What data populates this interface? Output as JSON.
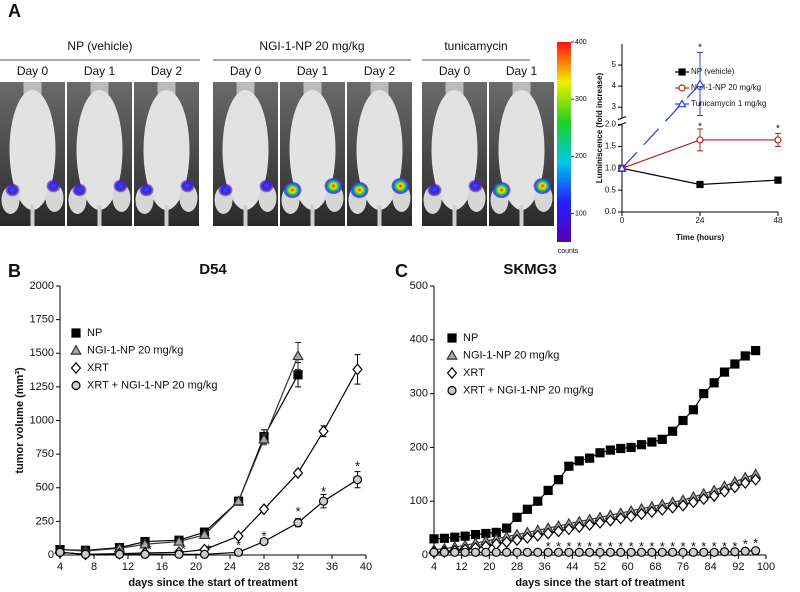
{
  "panel_labels": [
    "A",
    "B",
    "C"
  ],
  "imaging": {
    "groups": [
      {
        "title": "NP (vehicle)",
        "days": [
          "Day 0",
          "Day 1",
          "Day 2"
        ]
      },
      {
        "title": "NGI-1-NP 20 mg/kg",
        "days": [
          "Day 0",
          "Day 1",
          "Day 2"
        ]
      },
      {
        "title": "tunicamycin",
        "days": [
          "Day 0",
          "Day 1"
        ]
      }
    ],
    "colorbar": {
      "lim": [
        50,
        400
      ],
      "ticks": [
        100,
        200,
        300,
        400
      ],
      "label": "counts"
    }
  },
  "chart_data": [
    {
      "type": "line",
      "xlabel": "Time (hours)",
      "ylabel": "Luminiscence (fold increase)",
      "x": [
        0,
        24,
        48
      ],
      "xlim": [
        0,
        48
      ],
      "xticks": [
        0,
        24,
        48
      ],
      "ylim": [
        0,
        6
      ],
      "y_break": [
        2,
        2.5
      ],
      "yticks": [
        {
          "value": 0,
          "label": "0.0"
        },
        {
          "value": 0.5,
          "label": "0.5"
        },
        {
          "value": 1,
          "label": "1.0"
        },
        {
          "value": 1.5,
          "label": "1.5"
        },
        {
          "value": 2,
          "label": "2.0"
        },
        3,
        4,
        5
      ],
      "legend": "upper right",
      "series": [
        {
          "name": "NP (vehicle)",
          "color": "#000000",
          "fill": "#000000",
          "marker": "square",
          "values": [
            1,
            0.63,
            0.73
          ],
          "errors": [
            null,
            0.05,
            0.07
          ]
        },
        {
          "name": "NGI-1-NP 20 mg/kg",
          "color": "#b22222",
          "fill": "#ffffff",
          "marker": "circle",
          "values": [
            1,
            1.65,
            1.65
          ],
          "errors": [
            null,
            0.25,
            0.15
          ]
        },
        {
          "name": "Tunicamycin 1 mg/kg",
          "color": "#2b3fd6",
          "fill": "#ffffff",
          "marker": "triangle",
          "line_style": "dashed",
          "values": [
            1,
            4.1,
            null
          ],
          "errors": [
            null,
            1.5,
            null
          ]
        }
      ],
      "annotations": {
        "text": "*",
        "x": [
          24,
          24,
          48
        ],
        "y": [
          5.9,
          2.0,
          1.95
        ]
      }
    },
    {
      "type": "line",
      "title": "D54",
      "xlabel": "days since the start of treatment",
      "ylabel": "tumor volume (mm³)",
      "x": [
        4,
        7,
        11,
        14,
        18,
        21,
        25,
        28,
        32,
        35,
        39
      ],
      "xlim": [
        4,
        40
      ],
      "xticks": [
        4,
        8,
        12,
        16,
        20,
        24,
        28,
        32,
        36,
        40
      ],
      "ylim": [
        0,
        2000
      ],
      "yticks": [
        0,
        250,
        500,
        750,
        1000,
        1250,
        1500,
        1750,
        2000
      ],
      "legend": "upper left",
      "series": [
        {
          "name": "NP",
          "color": "#000000",
          "fill": "#000000",
          "marker": "square",
          "values": [
            40,
            35,
            55,
            100,
            110,
            170,
            400,
            880,
            1340,
            null,
            null
          ],
          "errors": [
            15,
            10,
            10,
            15,
            15,
            20,
            20,
            50,
            90,
            null,
            null
          ]
        },
        {
          "name": "NGI-1-NP 20 mg/kg",
          "color": "#333333",
          "fill": "#a8a8a8",
          "marker": "triangle",
          "values": [
            40,
            30,
            50,
            80,
            100,
            150,
            400,
            860,
            1480,
            null,
            null
          ],
          "errors": [
            10,
            10,
            10,
            15,
            15,
            20,
            20,
            40,
            100,
            null,
            null
          ]
        },
        {
          "name": "XRT",
          "color": "#000000",
          "fill": "#ffffff",
          "marker": "diamond",
          "values": [
            20,
            5,
            10,
            15,
            20,
            40,
            140,
            340,
            610,
            920,
            1380
          ],
          "errors": [
            5,
            5,
            5,
            5,
            5,
            10,
            10,
            15,
            20,
            40,
            110
          ]
        },
        {
          "name": "XRT + NGI-1-NP 20 mg/kg",
          "color": "#000000",
          "fill": "#cccccc",
          "marker": "circle",
          "values": [
            20,
            5,
            5,
            5,
            5,
            5,
            20,
            100,
            240,
            400,
            560
          ],
          "errors": [
            5,
            5,
            5,
            5,
            5,
            5,
            10,
            20,
            30,
            50,
            60
          ]
        }
      ],
      "annotations": {
        "text": "*",
        "x": [
          14.5,
          18.5,
          21.5,
          25,
          28,
          32,
          35,
          39
        ],
        "y": [
          50,
          50,
          50,
          80,
          150,
          330,
          480,
          670
        ]
      }
    },
    {
      "type": "line",
      "title": "SKMG3",
      "xlabel": "days since the start of treatment",
      "x": [
        4,
        7,
        10,
        13,
        16,
        19,
        22,
        25,
        28,
        31,
        34,
        37,
        40,
        43,
        46,
        49,
        52,
        55,
        58,
        61,
        64,
        67,
        70,
        73,
        76,
        79,
        82,
        85,
        88,
        91,
        94,
        97
      ],
      "xlim": [
        4,
        100
      ],
      "xticks": [
        4,
        12,
        20,
        28,
        36,
        44,
        52,
        60,
        68,
        76,
        84,
        92,
        100
      ],
      "ylim": [
        0,
        500
      ],
      "yticks": [
        0,
        100,
        200,
        300,
        400,
        500
      ],
      "legend": "upper left",
      "series": [
        {
          "name": "NP",
          "color": "#000000",
          "fill": "#000000",
          "marker": "square",
          "values": [
            30,
            31,
            33,
            35,
            38,
            40,
            42,
            50,
            70,
            85,
            100,
            120,
            140,
            165,
            175,
            180,
            190,
            195,
            198,
            200,
            205,
            210,
            215,
            230,
            250,
            270,
            300,
            320,
            340,
            355,
            370,
            380
          ]
        },
        {
          "name": "NGI-1-NP 20 mg/kg",
          "color": "#333333",
          "fill": "#a8a8a8",
          "marker": "triangle",
          "values": [
            10,
            12,
            15,
            18,
            22,
            26,
            30,
            34,
            38,
            42,
            46,
            50,
            54,
            58,
            62,
            66,
            70,
            74,
            78,
            82,
            86,
            90,
            94,
            98,
            102,
            108,
            114,
            120,
            128,
            136,
            144,
            150
          ]
        },
        {
          "name": "XRT",
          "color": "#000000",
          "fill": "#ffffff",
          "marker": "diamond",
          "values": [
            5,
            6,
            8,
            10,
            13,
            16,
            20,
            24,
            28,
            32,
            36,
            40,
            44,
            48,
            52,
            56,
            60,
            64,
            68,
            72,
            76,
            80,
            84,
            88,
            92,
            98,
            104,
            110,
            118,
            126,
            134,
            140
          ]
        },
        {
          "name": "XRT + NGI-1-NP 20 mg/kg",
          "color": "#000000",
          "fill": "#cccccc",
          "marker": "circle",
          "values": [
            5,
            5,
            5,
            5,
            5,
            5,
            5,
            5,
            5,
            5,
            5,
            5,
            5,
            5,
            5,
            5,
            5,
            5,
            5,
            5,
            5,
            5,
            5,
            5,
            5,
            5,
            5,
            5,
            6,
            6,
            7,
            8
          ]
        }
      ],
      "annotations": {
        "text": "*",
        "x": [
          37,
          40,
          43,
          46,
          49,
          52,
          55,
          58,
          61,
          64,
          67,
          70,
          73,
          76,
          79,
          82,
          85,
          88,
          91,
          94,
          97
        ],
        "y": [
          18,
          18,
          18,
          18,
          18,
          18,
          18,
          18,
          18,
          18,
          18,
          18,
          18,
          18,
          18,
          18,
          18,
          18,
          18,
          22,
          24
        ]
      }
    }
  ]
}
